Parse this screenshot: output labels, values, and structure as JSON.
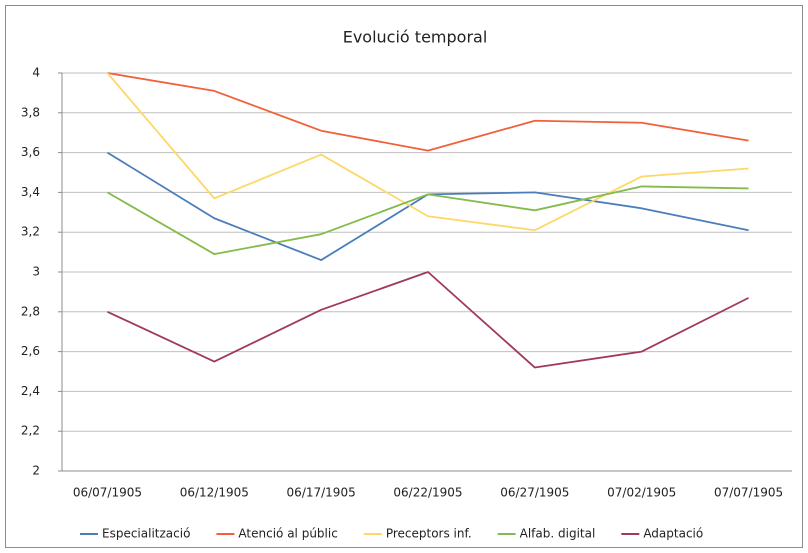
{
  "chart_data": {
    "type": "line",
    "title": "Evolució temporal",
    "categories": [
      "06/07/1905",
      "06/12/1905",
      "06/17/1905",
      "06/22/1905",
      "06/27/1905",
      "07/02/1905",
      "07/07/1905"
    ],
    "series": [
      {
        "name": "Especialització",
        "color": "#4a7ebb",
        "values": [
          3.6,
          3.27,
          3.06,
          3.39,
          3.4,
          3.32,
          3.21
        ]
      },
      {
        "name": "Atenció al públic",
        "color": "#f0603a",
        "values": [
          4.0,
          3.91,
          3.71,
          3.61,
          3.76,
          3.75,
          3.66
        ]
      },
      {
        "name": "Preceptors inf.",
        "color": "#fdd868",
        "values": [
          4.0,
          3.37,
          3.59,
          3.28,
          3.21,
          3.48,
          3.52
        ]
      },
      {
        "name": "Alfab. digital",
        "color": "#84bb4c",
        "values": [
          3.4,
          3.09,
          3.19,
          3.39,
          3.31,
          3.43,
          3.42
        ]
      },
      {
        "name": "Adaptació",
        "color": "#a0395a",
        "values": [
          2.8,
          2.55,
          2.81,
          3.0,
          2.52,
          2.6,
          2.87
        ]
      }
    ],
    "ylim": [
      2,
      4
    ],
    "yticks": [
      2,
      {
        "value": 2.2,
        "label": "2,2"
      },
      {
        "value": 2.4,
        "label": "2,4"
      },
      {
        "value": 2.6,
        "label": "2,6"
      },
      {
        "value": 2.8,
        "label": "2,8"
      },
      3,
      {
        "value": 3.2,
        "label": "3,2"
      },
      {
        "value": 3.4,
        "label": "3,4"
      },
      {
        "value": 3.6,
        "label": "3,6"
      },
      {
        "value": 3.8,
        "label": "3,8"
      },
      4
    ],
    "grid": true,
    "legend": "bottom"
  }
}
